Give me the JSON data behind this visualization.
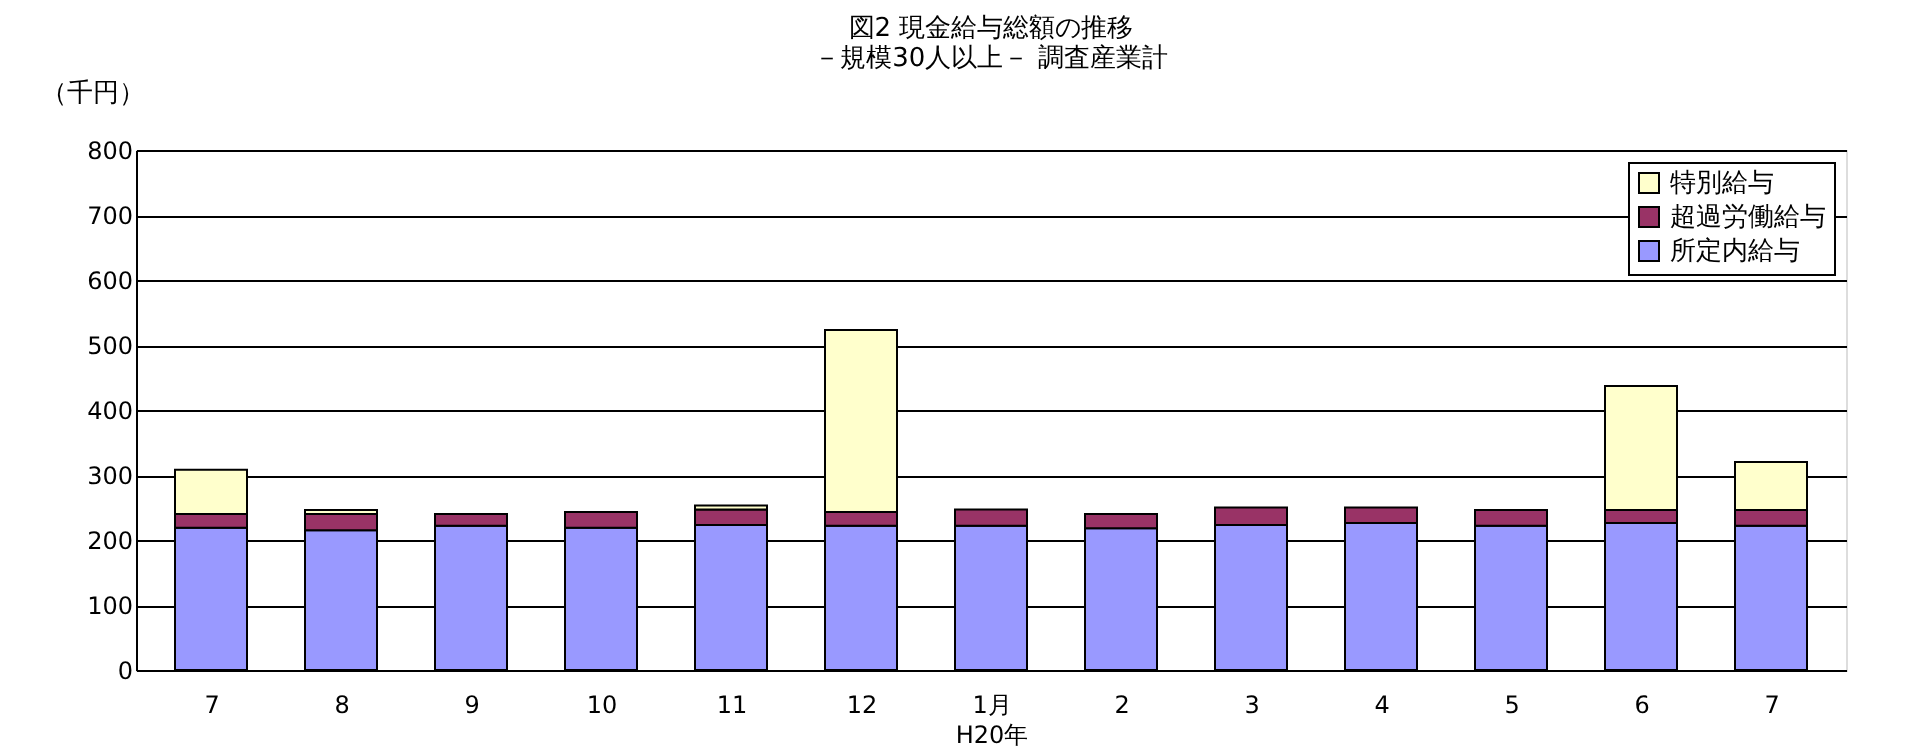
{
  "chart_data": {
    "type": "bar",
    "stacked": true,
    "title": [
      "図2  現金給与総額の推移",
      "－規模30人以上－  調査産業計"
    ],
    "ylabel": "（千円）",
    "xlabel": "H20年",
    "categories": [
      "7",
      "8",
      "9",
      "10",
      "11",
      "12",
      "1月",
      "2",
      "3",
      "4",
      "5",
      "6",
      "7"
    ],
    "series": [
      {
        "name": "所定内給与",
        "color": "#9999ff",
        "values": [
          219,
          215,
          222,
          219,
          223,
          222,
          222,
          218,
          223,
          226,
          222,
          226,
          222
        ]
      },
      {
        "name": "超過労働給与",
        "color": "#993366",
        "values": [
          21,
          25,
          18,
          24,
          24,
          21,
          25,
          22,
          27,
          24,
          24,
          20,
          24
        ]
      },
      {
        "name": "特別給与",
        "color": "#ffffcc",
        "values": [
          68,
          6,
          0,
          0,
          6,
          280,
          0,
          0,
          0,
          0,
          0,
          191,
          74
        ]
      }
    ],
    "ylim": [
      0,
      800
    ],
    "yticks": [
      0,
      100,
      200,
      300,
      400,
      500,
      600,
      700,
      800
    ],
    "grid": "y",
    "legend": "top right"
  }
}
